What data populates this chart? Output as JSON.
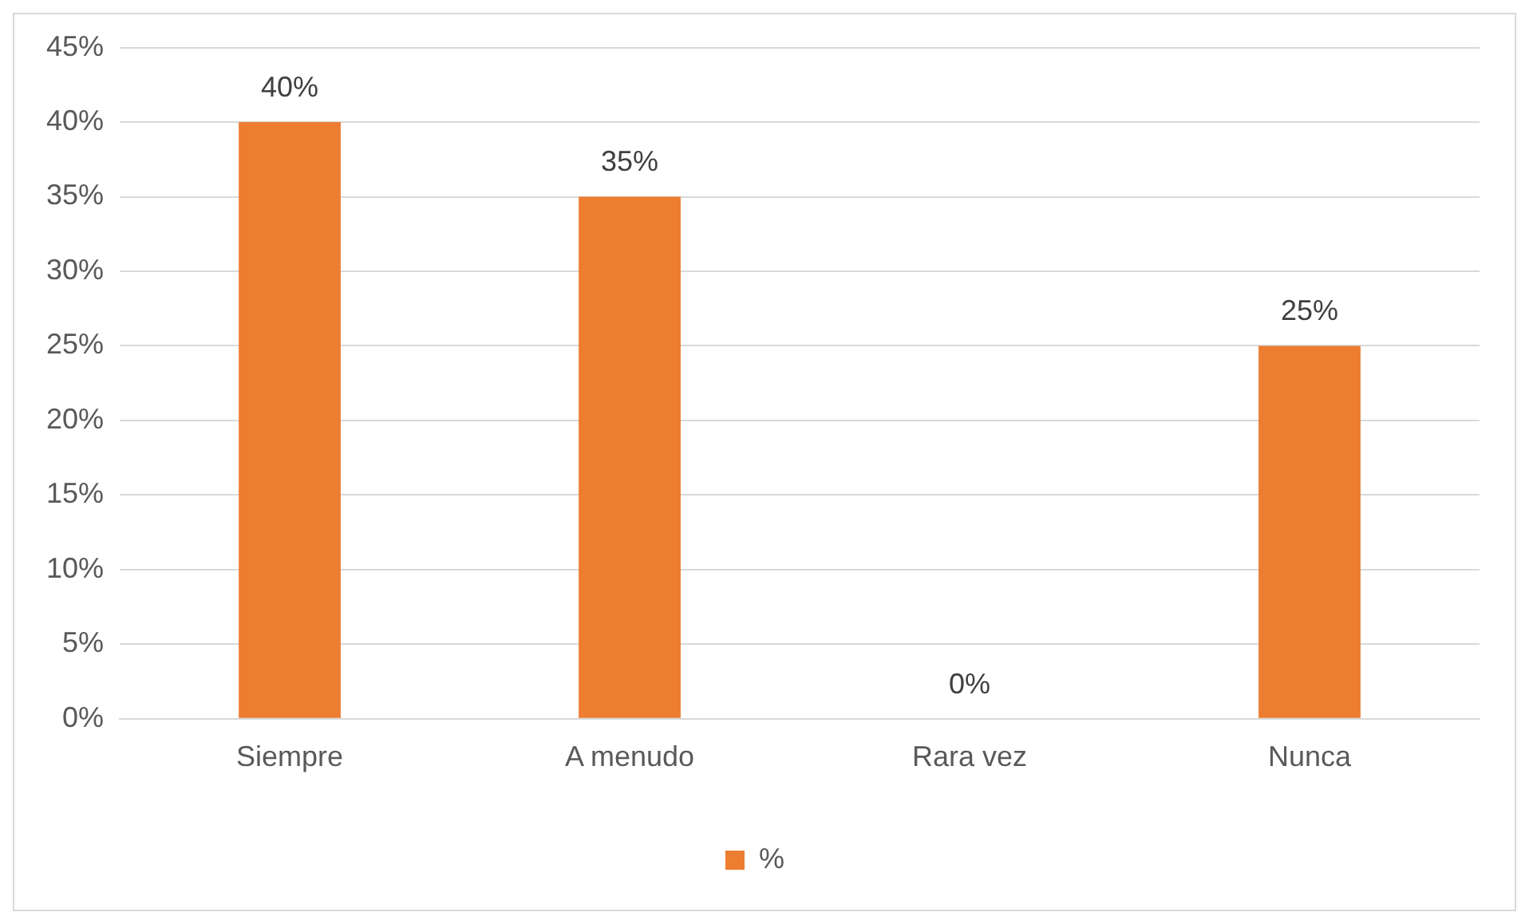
{
  "chart_data": {
    "type": "bar",
    "categories": [
      "Siempre",
      "A menudo",
      "Rara vez",
      "Nunca"
    ],
    "series": [
      {
        "name": "%",
        "color": "#ed7d31",
        "values": [
          40,
          35,
          0,
          25
        ],
        "value_labels": [
          "40%",
          "35%",
          "0%",
          "25%"
        ]
      }
    ],
    "ylim": [
      0,
      45
    ],
    "yticks": [
      {
        "value": 0,
        "label": "0%"
      },
      {
        "value": 5,
        "label": "5%"
      },
      {
        "value": 10,
        "label": "10%"
      },
      {
        "value": 15,
        "label": "15%"
      },
      {
        "value": 20,
        "label": "20%"
      },
      {
        "value": 25,
        "label": "25%"
      },
      {
        "value": 30,
        "label": "30%"
      },
      {
        "value": 35,
        "label": "35%"
      },
      {
        "value": 40,
        "label": "40%"
      },
      {
        "value": 45,
        "label": "45%"
      }
    ],
    "grid": "y",
    "legend": "bottom"
  }
}
